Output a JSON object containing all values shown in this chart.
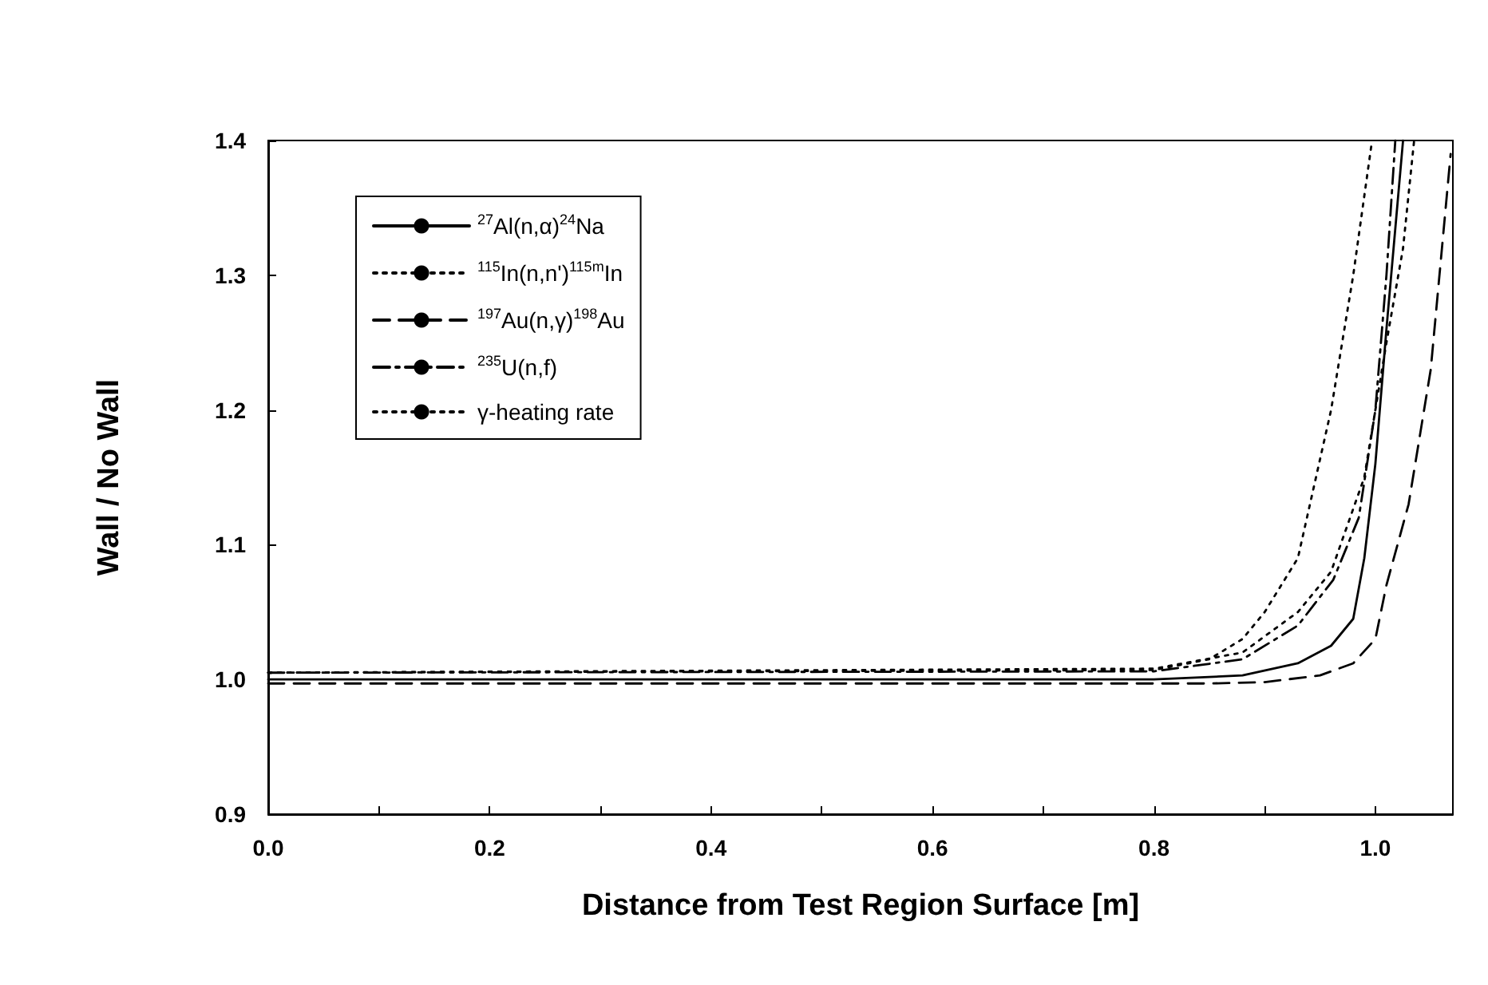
{
  "chart_data": {
    "type": "line",
    "xlabel": "Distance from Test Region Surface [m]",
    "ylabel": "Wall / No Wall",
    "xlim": [
      0,
      1.07
    ],
    "ylim": [
      0.9,
      1.4
    ],
    "xticks": [
      {
        "value": 0,
        "label": "0.0"
      },
      {
        "value": 0.1,
        "label": null
      },
      {
        "value": 0.2,
        "label": "0.2"
      },
      {
        "value": 0.3,
        "label": null
      },
      {
        "value": 0.4,
        "label": "0.4"
      },
      {
        "value": 0.5,
        "label": null
      },
      {
        "value": 0.6,
        "label": "0.6"
      },
      {
        "value": 0.7,
        "label": null
      },
      {
        "value": 0.8,
        "label": "0.8"
      },
      {
        "value": 0.9,
        "label": null
      },
      {
        "value": 1,
        "label": "1.0"
      }
    ],
    "yticks": [
      {
        "value": 0.9,
        "label": "0.9"
      },
      {
        "value": 1,
        "label": "1.0"
      },
      {
        "value": 1.1,
        "label": "1.1"
      },
      {
        "value": 1.2,
        "label": "1.2"
      },
      {
        "value": 1.3,
        "label": "1.3"
      },
      {
        "value": 1.4,
        "label": "1.4"
      }
    ],
    "grid": false,
    "legend": "top left",
    "marker": "none",
    "series": [
      {
        "name": "$^{27}$Al(n,α)$^{24}$Na",
        "color": "#000000",
        "line_style": "solid",
        "x": [
          0,
          0.8,
          0.88,
          0.93,
          0.96,
          0.98,
          0.99,
          1.0,
          1.01,
          1.025
        ],
        "values": [
          1.0,
          1.0,
          1.003,
          1.012,
          1.025,
          1.045,
          1.09,
          1.16,
          1.26,
          1.4
        ]
      },
      {
        "name": "$^{115}$In(n,n')$^{115m}$In",
        "color": "#000000",
        "line_style": "dotted",
        "x": [
          0,
          0.8,
          0.85,
          0.88,
          0.9,
          0.93,
          0.96,
          0.98,
          0.997
        ],
        "values": [
          1.005,
          1.007,
          1.015,
          1.03,
          1.05,
          1.09,
          1.2,
          1.3,
          1.4
        ]
      },
      {
        "name": "$^{197}$Au(n,γ)$^{198}$Au",
        "color": "#000000",
        "line_style": "dashed",
        "x": [
          0,
          0.85,
          0.9,
          0.95,
          0.98,
          1.0,
          1.01,
          1.03,
          1.05,
          1.068
        ],
        "values": [
          0.997,
          0.997,
          0.998,
          1.003,
          1.012,
          1.03,
          1.07,
          1.13,
          1.23,
          1.39
        ]
      },
      {
        "name": "$^{235}$U(n,f)",
        "color": "#000000",
        "line_style": "dashdot",
        "x": [
          0,
          0.8,
          0.88,
          0.93,
          0.962,
          0.985,
          1.0,
          1.01,
          1.018
        ],
        "values": [
          1.005,
          1.006,
          1.015,
          1.04,
          1.074,
          1.12,
          1.2,
          1.3,
          1.4
        ]
      },
      {
        "name": "γ-heating rate",
        "color": "#000000",
        "line_style": "dotted",
        "x": [
          0,
          0.8,
          0.88,
          0.93,
          0.96,
          0.99,
          1.01,
          1.025,
          1.035
        ],
        "values": [
          1.005,
          1.008,
          1.02,
          1.05,
          1.08,
          1.15,
          1.25,
          1.32,
          1.4
        ]
      }
    ]
  }
}
